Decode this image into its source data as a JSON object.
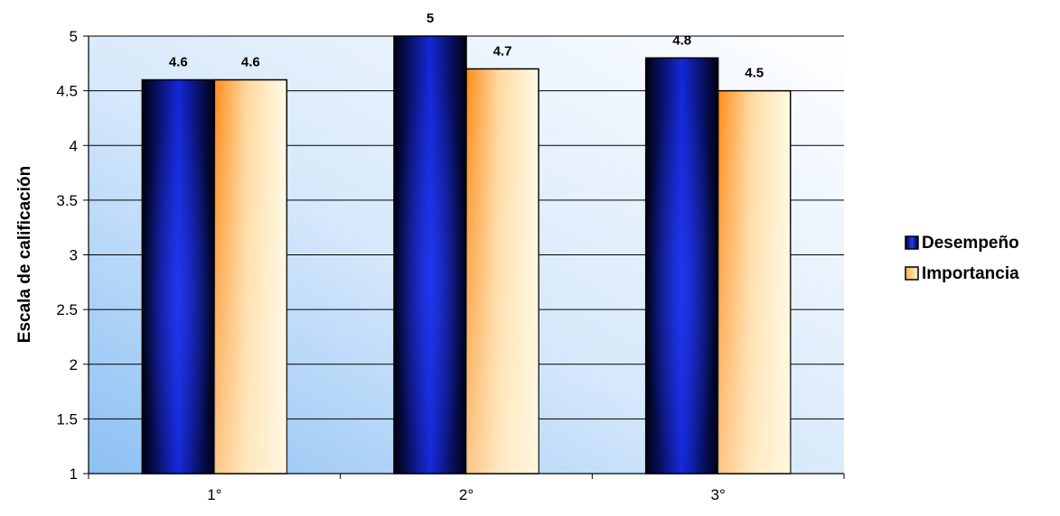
{
  "chart_data": {
    "type": "bar",
    "title": "",
    "xlabel": "",
    "ylabel": "Escala de calificación",
    "categories": [
      "1°",
      "2°",
      "3°"
    ],
    "series": [
      {
        "name": "Desempeño",
        "values": [
          4.6,
          5,
          4.8
        ],
        "color": "#0a1aa0",
        "data_labels": [
          "4.6",
          "5",
          "4.8"
        ]
      },
      {
        "name": "Importancia",
        "values": [
          4.6,
          4.7,
          4.5
        ],
        "color": "#ffcc66",
        "data_labels": [
          "4.6",
          "4.7",
          "4.5"
        ]
      }
    ],
    "ylim": [
      1,
      5
    ],
    "yticks": [
      "1",
      "1.5",
      "2",
      "2.5",
      "3",
      "3.5",
      "4",
      "4.5",
      "5"
    ],
    "grid": true,
    "legend_position": "right"
  }
}
